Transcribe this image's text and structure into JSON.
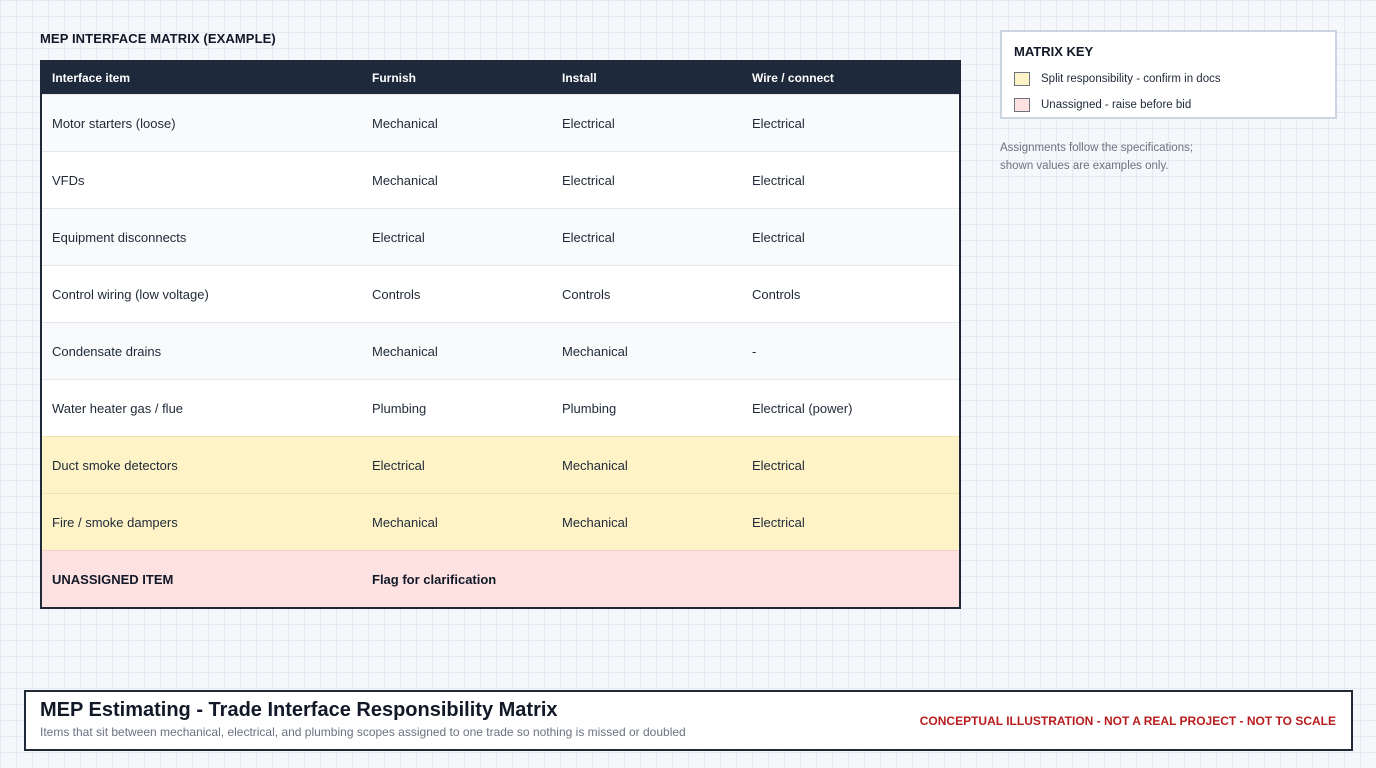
{
  "matrix": {
    "title": "MEP INTERFACE MATRIX (EXAMPLE)",
    "columns": [
      "Interface item",
      "Furnish",
      "Install",
      "Wire / connect"
    ],
    "rows": [
      {
        "item": "Motor starters (loose)",
        "furnish": "Mechanical",
        "install": "Electrical",
        "wire": "Electrical",
        "status": "normal"
      },
      {
        "item": "VFDs",
        "furnish": "Mechanical",
        "install": "Electrical",
        "wire": "Electrical",
        "status": "normal"
      },
      {
        "item": "Equipment disconnects",
        "furnish": "Electrical",
        "install": "Electrical",
        "wire": "Electrical",
        "status": "normal"
      },
      {
        "item": "Control wiring (low voltage)",
        "furnish": "Controls",
        "install": "Controls",
        "wire": "Controls",
        "status": "normal"
      },
      {
        "item": "Condensate drains",
        "furnish": "Mechanical",
        "install": "Mechanical",
        "wire": "-",
        "status": "normal"
      },
      {
        "item": "Water heater gas / flue",
        "furnish": "Plumbing",
        "install": "Plumbing",
        "wire": "Electrical (power)",
        "status": "normal"
      },
      {
        "item": "Duct smoke detectors",
        "furnish": "Electrical",
        "install": "Mechanical",
        "wire": "Electrical",
        "status": "split"
      },
      {
        "item": "Fire / smoke dampers",
        "furnish": "Mechanical",
        "install": "Mechanical",
        "wire": "Electrical",
        "status": "split"
      },
      {
        "item": "UNASSIGNED ITEM",
        "furnish": "Flag for clarification",
        "install": "",
        "wire": "",
        "status": "unassigned"
      }
    ]
  },
  "key": {
    "title": "MATRIX KEY",
    "items": [
      {
        "label": "Split responsibility - confirm in docs",
        "color": "#fef3c7"
      },
      {
        "label": "Unassigned - raise before bid",
        "color": "#fee2e2"
      }
    ],
    "note_line1": "Assignments follow the specifications;",
    "note_line2": "shown values are examples only."
  },
  "footer": {
    "title": "MEP Estimating - Trade Interface Responsibility Matrix",
    "subtitle": "Items that sit between mechanical, electrical, and plumbing scopes assigned to one trade so nothing is missed or doubled",
    "disclaimer": "CONCEPTUAL ILLUSTRATION - NOT A REAL PROJECT - NOT TO SCALE"
  },
  "colors": {
    "header_bg": "#1e293b",
    "split": "#fef3c7",
    "unassigned": "#fee2e2",
    "disclaimer": "#b91c1c"
  }
}
